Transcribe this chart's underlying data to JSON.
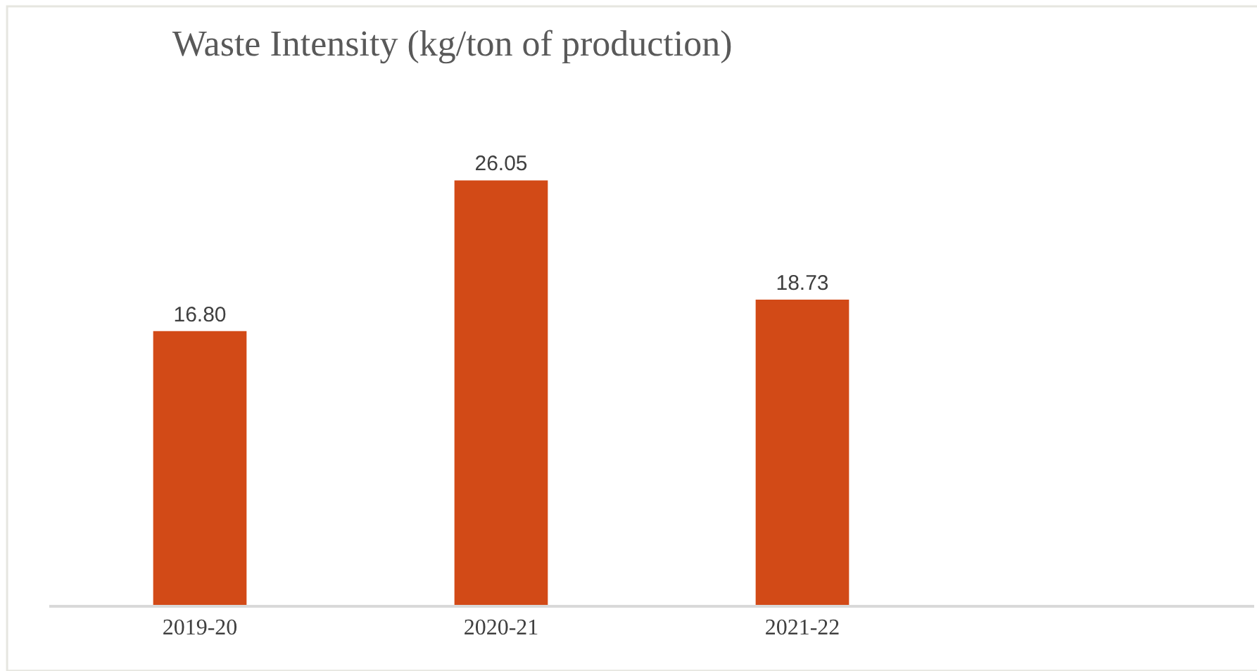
{
  "chart_data": {
    "type": "bar",
    "title": "Waste Intensity (kg/ton of production)",
    "categories": [
      "2019-20",
      "2020-21",
      "2021-22",
      null
    ],
    "values": [
      16.8,
      26.05,
      18.73,
      null
    ],
    "value_labels": [
      "16.80",
      "26.05",
      "18.73",
      null
    ],
    "color": "#d24a17"
  }
}
